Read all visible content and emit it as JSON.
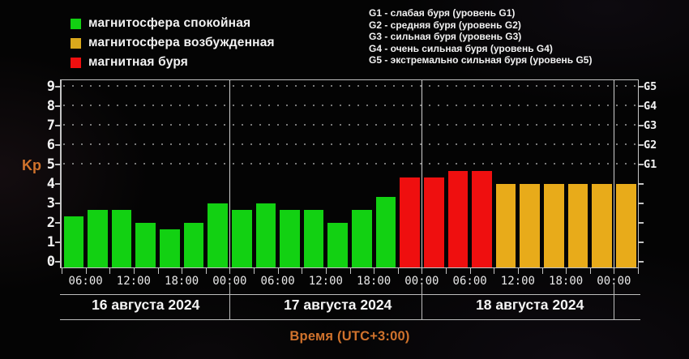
{
  "legend": {
    "items": [
      {
        "id": "quiet",
        "label": "магнитосфера спокойная",
        "color": "#12d112"
      },
      {
        "id": "excited",
        "label": "магнитосфера возбужденная",
        "color": "#d9a81c"
      },
      {
        "id": "storm",
        "label": "магнитная буря",
        "color": "#ef0f0f"
      }
    ]
  },
  "storm_levels": {
    "items": [
      {
        "label": "G1 - слабая буря (уровень G1)"
      },
      {
        "label": "G2 - средняя буря (уровень G2)"
      },
      {
        "label": "G3 - сильная буря (уровень G3)"
      },
      {
        "label": "G4 - очень сильная буря (уровень G4)"
      },
      {
        "label": "G5 - экстремально сильная буря (уровень G5)"
      }
    ]
  },
  "chart_data": {
    "type": "bar",
    "title": "",
    "ylabel": "Kp",
    "xlabel": "Время (UTC+3:00)",
    "ylim": [
      0,
      9.35
    ],
    "y_ticks": [
      0,
      1,
      2,
      3,
      4,
      5,
      6,
      7,
      8,
      9
    ],
    "grid_levels": [
      5,
      6,
      7,
      8,
      9
    ],
    "right_axis_labels": [
      {
        "level": 5,
        "label": "G1"
      },
      {
        "level": 6,
        "label": "G2"
      },
      {
        "level": 7,
        "label": "G3"
      },
      {
        "level": 8,
        "label": "G4"
      },
      {
        "level": 9,
        "label": "G5"
      }
    ],
    "state_colors": {
      "quiet": "#12d112",
      "excited": "#e8ab1a",
      "storm": "#ef0f0f"
    },
    "bar_hours": 3,
    "bars": [
      {
        "date": "16.08",
        "start": "03:00",
        "value": 2.33,
        "state": "quiet"
      },
      {
        "date": "16.08",
        "start": "06:00",
        "value": 2.67,
        "state": "quiet"
      },
      {
        "date": "16.08",
        "start": "09:00",
        "value": 2.67,
        "state": "quiet"
      },
      {
        "date": "16.08",
        "start": "12:00",
        "value": 2.0,
        "state": "quiet"
      },
      {
        "date": "16.08",
        "start": "15:00",
        "value": 1.67,
        "state": "quiet"
      },
      {
        "date": "16.08",
        "start": "18:00",
        "value": 2.0,
        "state": "quiet"
      },
      {
        "date": "16.08",
        "start": "21:00",
        "value": 3.0,
        "state": "quiet"
      },
      {
        "date": "17.08",
        "start": "00:00",
        "value": 2.67,
        "state": "quiet"
      },
      {
        "date": "17.08",
        "start": "03:00",
        "value": 3.0,
        "state": "quiet"
      },
      {
        "date": "17.08",
        "start": "06:00",
        "value": 2.67,
        "state": "quiet"
      },
      {
        "date": "17.08",
        "start": "09:00",
        "value": 2.67,
        "state": "quiet"
      },
      {
        "date": "17.08",
        "start": "12:00",
        "value": 2.0,
        "state": "quiet"
      },
      {
        "date": "17.08",
        "start": "15:00",
        "value": 2.67,
        "state": "quiet"
      },
      {
        "date": "17.08",
        "start": "18:00",
        "value": 3.33,
        "state": "quiet"
      },
      {
        "date": "17.08",
        "start": "21:00",
        "value": 4.33,
        "state": "storm"
      },
      {
        "date": "18.08",
        "start": "00:00",
        "value": 4.33,
        "state": "storm"
      },
      {
        "date": "18.08",
        "start": "03:00",
        "value": 4.67,
        "state": "storm"
      },
      {
        "date": "18.08",
        "start": "06:00",
        "value": 4.67,
        "state": "storm"
      },
      {
        "date": "18.08",
        "start": "09:00",
        "value": 4.0,
        "state": "excited"
      },
      {
        "date": "18.08",
        "start": "12:00",
        "value": 4.0,
        "state": "excited"
      },
      {
        "date": "18.08",
        "start": "15:00",
        "value": 4.0,
        "state": "excited"
      },
      {
        "date": "18.08",
        "start": "18:00",
        "value": 4.0,
        "state": "excited"
      },
      {
        "date": "18.08",
        "start": "21:00",
        "value": 4.0,
        "state": "excited"
      },
      {
        "date": "19.08",
        "start": "00:00",
        "value": 4.0,
        "state": "excited"
      }
    ],
    "x_tick_labels": [
      {
        "slot": 1,
        "label": "06:00"
      },
      {
        "slot": 3,
        "label": "12:00"
      },
      {
        "slot": 5,
        "label": "18:00"
      },
      {
        "slot": 7,
        "label": "00:00"
      },
      {
        "slot": 9,
        "label": "06:00"
      },
      {
        "slot": 11,
        "label": "12:00"
      },
      {
        "slot": 13,
        "label": "18:00"
      },
      {
        "slot": 15,
        "label": "00:00"
      },
      {
        "slot": 17,
        "label": "06:00"
      },
      {
        "slot": 19,
        "label": "12:00"
      },
      {
        "slot": 21,
        "label": "18:00"
      },
      {
        "slot": 23,
        "label": "00:00"
      }
    ],
    "day_separator_slots": [
      7,
      15,
      23
    ],
    "day_labels": [
      {
        "label": "16 августа 2024",
        "center_slot": 3
      },
      {
        "label": "17 августа 2024",
        "center_slot": 11
      },
      {
        "label": "18 августа 2024",
        "center_slot": 19
      }
    ],
    "legend_position": "top-left",
    "grid": "dotted-top-half"
  }
}
